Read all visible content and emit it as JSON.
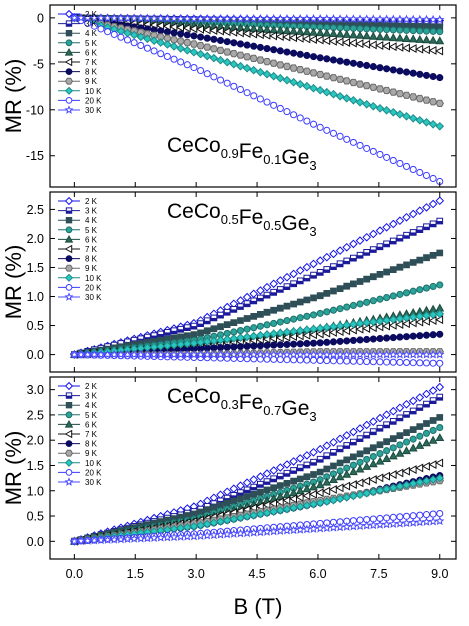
{
  "xlabel": "B (T)",
  "x_ticks": [
    "0.0",
    "1.5",
    "3.0",
    "4.5",
    "6.0",
    "7.5",
    "9.0"
  ],
  "chart_data": [
    {
      "type": "scatter",
      "formula_parts": [
        {
          "text": "CeCo",
          "sub": false
        },
        {
          "text": "0.9",
          "sub": true
        },
        {
          "text": "Fe",
          "sub": false
        },
        {
          "text": "0.1",
          "sub": true
        },
        {
          "text": "Ge",
          "sub": false
        },
        {
          "text": "3",
          "sub": true
        }
      ],
      "ylabel": "MR (%)",
      "xlim": [
        -0.6,
        9.4
      ],
      "ylim": [
        -18.4,
        1.4
      ],
      "yticks": [
        "0",
        "-5",
        "-10",
        "-15"
      ],
      "ytick_values": [
        0,
        -5,
        -10,
        -15
      ],
      "series": [
        {
          "name": "2 K",
          "x": [
            0,
            3,
            6,
            9
          ],
          "y": [
            0,
            -0.1,
            -0.2,
            -0.3
          ]
        },
        {
          "name": "3 K",
          "x": [
            0,
            3,
            6,
            9
          ],
          "y": [
            0,
            -0.2,
            -0.4,
            -0.6
          ]
        },
        {
          "name": "4 K",
          "x": [
            0,
            3,
            6,
            9
          ],
          "y": [
            0,
            -0.3,
            -0.6,
            -1.0
          ]
        },
        {
          "name": "5 K",
          "x": [
            0,
            3,
            6,
            9
          ],
          "y": [
            0,
            -0.5,
            -1.0,
            -1.5
          ]
        },
        {
          "name": "6 K",
          "x": [
            0,
            3,
            6,
            9
          ],
          "y": [
            0,
            -0.8,
            -1.6,
            -2.5
          ]
        },
        {
          "name": "7 K",
          "x": [
            0,
            3,
            6,
            9
          ],
          "y": [
            0,
            -1.2,
            -2.4,
            -3.6
          ]
        },
        {
          "name": "8 K",
          "x": [
            0,
            3,
            6,
            9
          ],
          "y": [
            0,
            -2.0,
            -4.3,
            -6.5
          ]
        },
        {
          "name": "9 K",
          "x": [
            0,
            3,
            6,
            9
          ],
          "y": [
            0,
            -2.9,
            -6.1,
            -9.3
          ]
        },
        {
          "name": "10 K",
          "x": [
            0,
            3,
            6,
            9
          ],
          "y": [
            0,
            -3.8,
            -7.8,
            -11.8
          ]
        },
        {
          "name": "20 K",
          "x": [
            0,
            3,
            6,
            9
          ],
          "y": [
            0,
            -5.5,
            -11.8,
            -17.8
          ]
        },
        {
          "name": "30 K",
          "x": [
            0,
            3,
            6,
            9
          ],
          "y": [
            0,
            -0.1,
            -0.1,
            -0.2
          ]
        }
      ]
    },
    {
      "type": "scatter",
      "formula_parts": [
        {
          "text": "CeCo",
          "sub": false
        },
        {
          "text": "0.5",
          "sub": true
        },
        {
          "text": "Fe",
          "sub": false
        },
        {
          "text": "0.5",
          "sub": true
        },
        {
          "text": "Ge",
          "sub": false
        },
        {
          "text": "3",
          "sub": true
        }
      ],
      "ylabel": "MR (%)",
      "xlim": [
        -0.6,
        9.4
      ],
      "ylim": [
        -0.3,
        2.8
      ],
      "yticks": [
        "0.0",
        "0.5",
        "1.0",
        "1.5",
        "2.0",
        "2.5"
      ],
      "ytick_values": [
        0.0,
        0.5,
        1.0,
        1.5,
        2.0,
        2.5
      ],
      "series": [
        {
          "name": "2 K",
          "x": [
            0,
            3,
            6,
            9
          ],
          "y": [
            0.0,
            0.55,
            1.6,
            2.65
          ]
        },
        {
          "name": "3 K",
          "x": [
            0,
            3,
            6,
            9
          ],
          "y": [
            0.0,
            0.5,
            1.4,
            2.3
          ]
        },
        {
          "name": "4 K",
          "x": [
            0,
            3,
            6,
            9
          ],
          "y": [
            0.0,
            0.35,
            1.0,
            1.75
          ]
        },
        {
          "name": "5 K",
          "x": [
            0,
            3,
            6,
            9
          ],
          "y": [
            0.0,
            0.25,
            0.7,
            1.2
          ]
        },
        {
          "name": "6 K",
          "x": [
            0,
            3,
            6,
            9
          ],
          "y": [
            0.0,
            0.2,
            0.45,
            0.8
          ]
        },
        {
          "name": "7 K",
          "x": [
            0,
            3,
            6,
            9
          ],
          "y": [
            0.0,
            0.15,
            0.35,
            0.6
          ]
        },
        {
          "name": "8 K",
          "x": [
            0,
            3,
            6,
            9
          ],
          "y": [
            0.0,
            0.1,
            0.2,
            0.35
          ]
        },
        {
          "name": "9 K",
          "x": [
            0,
            3,
            6,
            9
          ],
          "y": [
            0.0,
            0.0,
            0.05,
            0.05
          ]
        },
        {
          "name": "10 K",
          "x": [
            0,
            3,
            6,
            9
          ],
          "y": [
            0.0,
            0.2,
            0.45,
            0.7
          ]
        },
        {
          "name": "20 K",
          "x": [
            0,
            3,
            6,
            9
          ],
          "y": [
            0.0,
            -0.05,
            -0.1,
            -0.15
          ]
        },
        {
          "name": "30 K",
          "x": [
            0,
            3,
            6,
            9
          ],
          "y": [
            0.0,
            0.0,
            0.0,
            0.0
          ]
        }
      ]
    },
    {
      "type": "scatter",
      "formula_parts": [
        {
          "text": "CeCo",
          "sub": false
        },
        {
          "text": "0.3",
          "sub": true
        },
        {
          "text": "Fe",
          "sub": false
        },
        {
          "text": "0.7",
          "sub": true
        },
        {
          "text": "Ge",
          "sub": false
        },
        {
          "text": "3",
          "sub": true
        }
      ],
      "ylabel": "MR (%)",
      "xlim": [
        -0.6,
        9.4
      ],
      "ylim": [
        -0.35,
        3.25
      ],
      "yticks": [
        "0.0",
        "0.5",
        "1.0",
        "1.5",
        "2.0",
        "2.5",
        "3.0"
      ],
      "ytick_values": [
        0.0,
        0.5,
        1.0,
        1.5,
        2.0,
        2.5,
        3.0
      ],
      "series": [
        {
          "name": "2 K",
          "x": [
            0,
            3,
            6,
            9
          ],
          "y": [
            0.0,
            0.7,
            1.8,
            3.05
          ]
        },
        {
          "name": "3 K",
          "x": [
            0,
            3,
            6,
            9
          ],
          "y": [
            0.0,
            0.6,
            1.6,
            2.85
          ]
        },
        {
          "name": "4 K",
          "x": [
            0,
            3,
            6,
            9
          ],
          "y": [
            0.0,
            0.55,
            1.35,
            2.45
          ]
        },
        {
          "name": "5 K",
          "x": [
            0,
            3,
            6,
            9
          ],
          "y": [
            0.0,
            0.45,
            1.2,
            2.25
          ]
        },
        {
          "name": "6 K",
          "x": [
            0,
            3,
            6,
            9
          ],
          "y": [
            0.0,
            0.4,
            1.1,
            2.05
          ]
        },
        {
          "name": "7 K",
          "x": [
            0,
            3,
            6,
            9
          ],
          "y": [
            0.0,
            0.4,
            0.95,
            1.55
          ]
        },
        {
          "name": "8 K",
          "x": [
            0,
            3,
            6,
            9
          ],
          "y": [
            0.0,
            0.3,
            0.75,
            1.3
          ]
        },
        {
          "name": "9 K",
          "x": [
            0,
            3,
            6,
            9
          ],
          "y": [
            0.0,
            0.35,
            0.8,
            1.2
          ]
        },
        {
          "name": "10 K",
          "x": [
            0,
            3,
            6,
            9
          ],
          "y": [
            0.0,
            0.3,
            0.75,
            1.25
          ]
        },
        {
          "name": "20 K",
          "x": [
            0,
            3,
            6,
            9
          ],
          "y": [
            0.0,
            0.15,
            0.35,
            0.55
          ]
        },
        {
          "name": "30 K",
          "x": [
            0,
            3,
            6,
            9
          ],
          "y": [
            0.0,
            0.1,
            0.25,
            0.4
          ]
        }
      ]
    }
  ],
  "series_styles": [
    {
      "marker": "diamond",
      "color": "#1010ee",
      "fill": "#ffffff"
    },
    {
      "marker": "square-half",
      "color": "#1a1a9a",
      "fill": "#ffffff"
    },
    {
      "marker": "square",
      "color": "#2e4f57",
      "fill": "#2e4f57"
    },
    {
      "marker": "circle",
      "color": "#1f6f6a",
      "fill": "#2aa39a"
    },
    {
      "marker": "triangle-up",
      "color": "#1b4b3f",
      "fill": "#2b6a5a"
    },
    {
      "marker": "triangle-left",
      "color": "#111111",
      "fill": "#ffffff"
    },
    {
      "marker": "circle",
      "color": "#0b0b60",
      "fill": "#0b0b60"
    },
    {
      "marker": "hexagon",
      "color": "#6a6a6a",
      "fill": "#a8a8a8"
    },
    {
      "marker": "diamond",
      "color": "#1c8c8a",
      "fill": "#29c7c0"
    },
    {
      "marker": "circle",
      "color": "#3a3aff",
      "fill": "#ffffff"
    },
    {
      "marker": "star",
      "color": "#4a4aff",
      "fill": "#ffffff"
    }
  ]
}
